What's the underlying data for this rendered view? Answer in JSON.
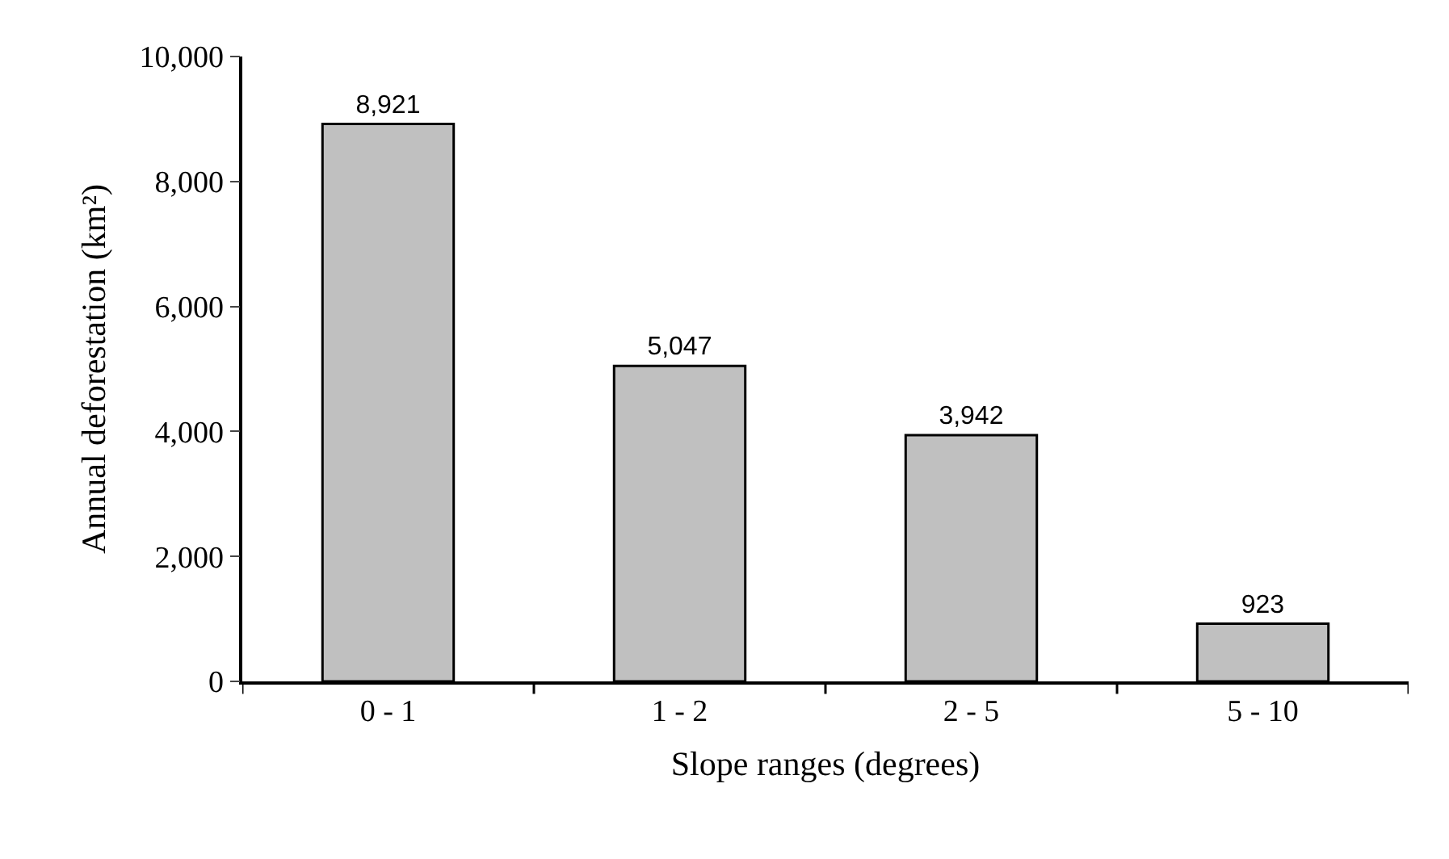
{
  "chart_data": {
    "type": "bar",
    "xlabel": "Slope ranges (degrees)",
    "ylabel": "Annual deforestation (km²)",
    "categories": [
      "0 - 1",
      "1 - 2",
      "2 - 5",
      "5 - 10"
    ],
    "values": [
      8921,
      5047,
      3942,
      923
    ],
    "color": "#c0c0c0",
    "value_labels": [
      "8,921",
      "5,047",
      "3,942",
      "923"
    ],
    "ylim": [
      0,
      10000
    ],
    "yticks": [
      {
        "value": 0,
        "label": "0"
      },
      {
        "value": 2000,
        "label": "2,000"
      },
      {
        "value": 4000,
        "label": "4,000"
      },
      {
        "value": 6000,
        "label": "6,000"
      },
      {
        "value": 8000,
        "label": "8,000"
      },
      {
        "value": 10000,
        "label": "10,000"
      }
    ]
  }
}
